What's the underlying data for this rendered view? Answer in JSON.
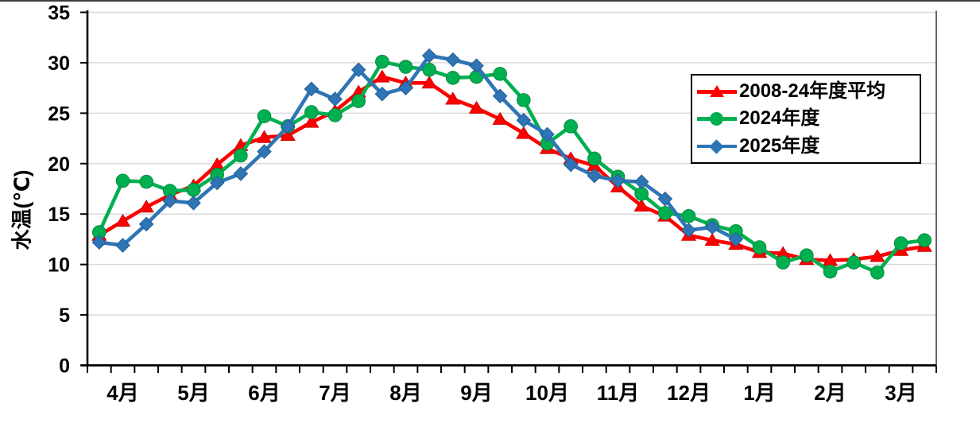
{
  "chart_data": {
    "type": "line",
    "title": "",
    "ylabel": "水温(℃)",
    "xlabel": "",
    "ylim": [
      0,
      35
    ],
    "y_ticks": [
      0,
      5,
      10,
      15,
      20,
      25,
      30,
      35
    ],
    "months": [
      "4月",
      "5月",
      "6月",
      "7月",
      "8月",
      "9月",
      "10月",
      "11月",
      "12月",
      "1月",
      "2月",
      "3月"
    ],
    "points_per_month": 3,
    "grid": true,
    "legend_position": "upper-right",
    "colors": {
      "gridline": "#d9d9d9",
      "axis": "#000000",
      "plot_border": "#262626",
      "text": "#000000"
    },
    "series": [
      {
        "name": "2008-24年度平均",
        "color": "#FF0000",
        "edge": "#cc0000",
        "marker": "triangle",
        "values": [
          12.9,
          14.3,
          15.7,
          16.9,
          17.8,
          19.9,
          21.8,
          22.6,
          22.8,
          24.1,
          25.2,
          27.1,
          28.6,
          28.0,
          28.0,
          26.4,
          25.5,
          24.4,
          23.0,
          21.5,
          20.5,
          19.8,
          17.7,
          15.8,
          14.8,
          12.9,
          12.4,
          12.0,
          11.2,
          11.1,
          10.5,
          10.4,
          10.5,
          10.8,
          11.4,
          11.8
        ]
      },
      {
        "name": "2024年度",
        "color": "#00B050",
        "edge": "#008a3e",
        "marker": "circle",
        "values": [
          13.2,
          18.3,
          18.2,
          17.3,
          17.4,
          18.9,
          20.8,
          24.7,
          23.7,
          25.1,
          24.8,
          26.2,
          30.1,
          29.6,
          29.3,
          28.5,
          28.6,
          28.9,
          26.3,
          22.0,
          23.7,
          20.5,
          18.7,
          17.0,
          15.1,
          14.8,
          13.9,
          13.3,
          11.7,
          10.2,
          10.9,
          9.3,
          10.2,
          9.2,
          12.1,
          12.4
        ]
      },
      {
        "name": "2025年度",
        "color": "#2E75B6",
        "edge": "#255e94",
        "marker": "diamond",
        "values": [
          12.2,
          11.9,
          14.0,
          16.3,
          16.1,
          18.1,
          19.0,
          21.2,
          23.7,
          27.4,
          26.4,
          29.3,
          26.9,
          27.5,
          30.7,
          30.3,
          29.7,
          26.7,
          24.3,
          22.9,
          19.9,
          18.8,
          18.3,
          18.2,
          16.5,
          13.4,
          13.7,
          12.5,
          null,
          null,
          null,
          null,
          null,
          null,
          null,
          null
        ]
      }
    ]
  }
}
